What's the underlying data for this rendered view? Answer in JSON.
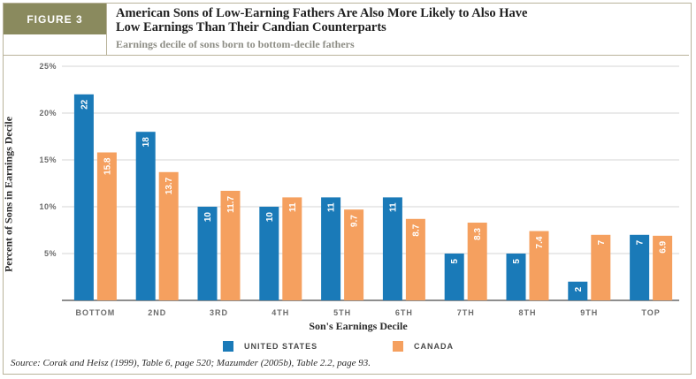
{
  "figure_label": "FIGURE 3",
  "title": "American Sons of Low-Earning Fathers Are Also More Likely to Also Have Low Earnings Than Their Candian Counterparts",
  "subtitle": "Earnings decile of sons born to bottom-decile fathers",
  "source": "Source: Corak and Heisz (1999), Table 6, page 520; Mazumder (2005b), Table 2.2, page 93.",
  "colors": {
    "us": "#1a7ab8",
    "canada": "#f5a05f",
    "grid": "#d6d6d6",
    "tick": "#6b6b6b"
  },
  "chart_data": {
    "type": "bar",
    "title": "American Sons of Low-Earning Fathers Are Also More Likely to Also Have Low Earnings Than Their Candian Counterparts",
    "subtitle": "Earnings decile of sons born to bottom-decile fathers",
    "xlabel": "Son's Earnings Decile",
    "ylabel": "Percent of Sons in Earnings Decile",
    "categories": [
      "BOTTOM",
      "2ND",
      "3RD",
      "4TH",
      "5TH",
      "6TH",
      "7TH",
      "8TH",
      "9TH",
      "TOP"
    ],
    "yticks": [
      "5%",
      "10%",
      "15%",
      "20%",
      "25%"
    ],
    "ytick_values": [
      5,
      10,
      15,
      20,
      25
    ],
    "ylim": [
      0,
      25
    ],
    "series": [
      {
        "name": "UNITED STATES",
        "values": [
          22,
          18,
          10,
          10,
          11,
          11,
          5,
          5,
          2,
          7
        ],
        "labels": [
          "22",
          "18",
          "10",
          "10",
          "11",
          "11",
          "5",
          "5",
          "2",
          "7"
        ]
      },
      {
        "name": "CANADA",
        "values": [
          15.8,
          13.7,
          11.7,
          11,
          9.7,
          8.7,
          8.3,
          7.4,
          7,
          6.9
        ],
        "labels": [
          "15.8",
          "13.7",
          "11.7",
          "11",
          "9.7",
          "8.7",
          "8.3",
          "7.4",
          "7",
          "6.9"
        ]
      }
    ]
  }
}
